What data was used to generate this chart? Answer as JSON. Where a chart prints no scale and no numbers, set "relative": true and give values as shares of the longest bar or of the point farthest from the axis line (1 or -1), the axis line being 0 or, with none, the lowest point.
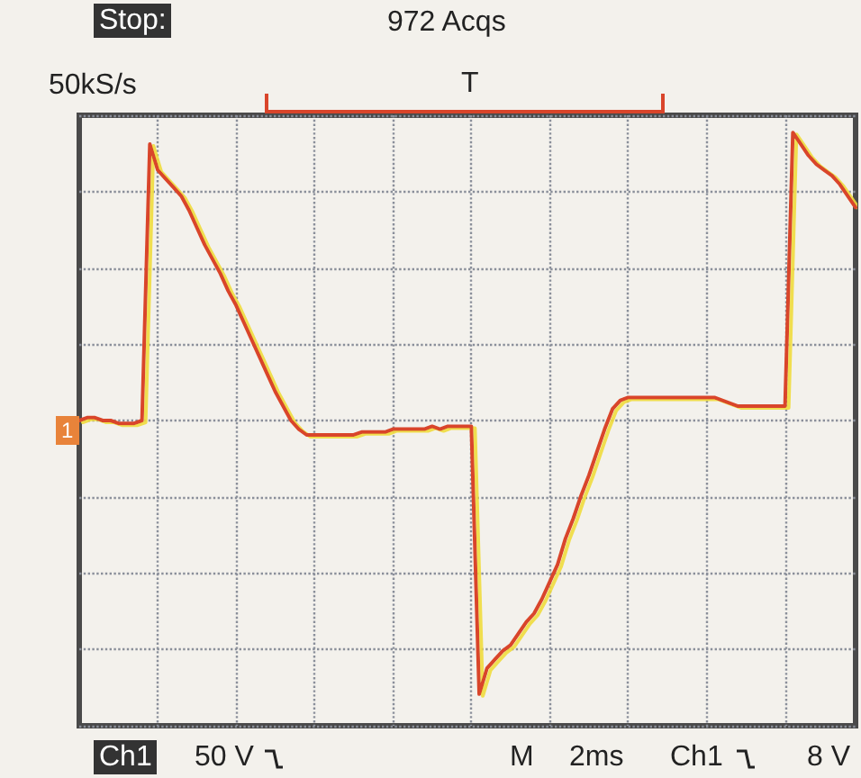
{
  "chart_data": {
    "type": "line",
    "relative": true,
    "grid": true,
    "line_style": "solid",
    "annotations": [
      "Stop:",
      "972 Acqs",
      "50kS/s",
      "T",
      "Ch1",
      "50 V",
      "M",
      "2ms",
      "Ch1",
      "8 V",
      "1"
    ],
    "categories": [
      null,
      null,
      null,
      null,
      null,
      null,
      null,
      null,
      null,
      null,
      null,
      null,
      null,
      null,
      null,
      null,
      null,
      null,
      null,
      null,
      null,
      null,
      null,
      null,
      null,
      null,
      null,
      null,
      null,
      null,
      null,
      null,
      null,
      null,
      null,
      null,
      null,
      null,
      null,
      null,
      null,
      null,
      null,
      null,
      null,
      null,
      null,
      null,
      null,
      null,
      null,
      null,
      null,
      null,
      null,
      null,
      null,
      null,
      null,
      null,
      null,
      null,
      null,
      null,
      null,
      null,
      null,
      null,
      null,
      null,
      null,
      null,
      null,
      null,
      null,
      null,
      null,
      null,
      null,
      null,
      null,
      null,
      null,
      null,
      null,
      null,
      null,
      null,
      null,
      null,
      null,
      null,
      null,
      null,
      null,
      null,
      null,
      null,
      null,
      null
    ],
    "series": [
      {
        "color": "#d9452b",
        "values": [
          0,
          0.01,
          0.01,
          0,
          0,
          -0.01,
          -0.01,
          -0.01,
          0,
          0.96,
          0.87,
          0.84,
          0.81,
          0.78,
          0.73,
          0.67,
          0.61,
          0.56,
          0.51,
          0.45,
          0.4,
          0.34,
          0.28,
          0.22,
          0.16,
          0.1,
          0.05,
          0,
          -0.03,
          -0.05,
          -0.05,
          -0.05,
          -0.05,
          -0.05,
          -0.05,
          -0.05,
          -0.04,
          -0.04,
          -0.04,
          -0.04,
          -0.03,
          -0.03,
          -0.03,
          -0.03,
          -0.03,
          -0.02,
          -0.03,
          -0.02,
          -0.02,
          -0.02,
          -0.02,
          -0.95,
          -0.86,
          -0.83,
          -0.8,
          -0.78,
          -0.74,
          -0.7,
          -0.67,
          -0.62,
          -0.56,
          -0.5,
          -0.41,
          -0.34,
          -0.26,
          -0.19,
          -0.11,
          -0.03,
          0.04,
          0.07,
          0.08,
          0.08,
          0.08,
          0.08,
          0.08,
          0.08,
          0.08,
          0.08,
          0.08,
          0.08,
          0.08,
          0.08,
          0.07,
          0.06,
          0.05,
          0.05,
          0.05,
          0.05,
          0.05,
          0.05,
          0.05,
          1.0,
          0.96,
          0.92,
          0.89,
          0.87,
          0.85,
          0.82,
          0.78,
          0.74
        ]
      }
    ]
  }
}
